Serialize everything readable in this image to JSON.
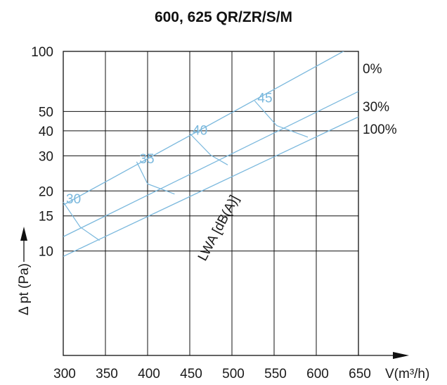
{
  "colors": {
    "grid": "#111111",
    "series": "#7ab8dd",
    "sound_label": "#7ab8dd",
    "text": "#1a1a1a"
  },
  "chart_data": {
    "type": "line",
    "title": "600, 625 QR/ZR/S/M",
    "xlabel": "V(m³/h)",
    "ylabel": "Δ pt (Pa)",
    "x_scale": "linear",
    "y_scale": "log",
    "xlim": [
      300,
      650
    ],
    "ylim": [
      3,
      100
    ],
    "x_ticks": [
      300,
      350,
      400,
      450,
      500,
      550,
      600,
      650
    ],
    "y_ticks": [
      10,
      15,
      20,
      30,
      40,
      50,
      100
    ],
    "grid": true,
    "series": [
      {
        "name": "0%",
        "x": [
          300,
          650
        ],
        "y": [
          17,
          110
        ]
      },
      {
        "name": "30%",
        "x": [
          300,
          650
        ],
        "y": [
          11.8,
          63
        ]
      },
      {
        "name": "100%",
        "x": [
          300,
          650
        ],
        "y": [
          9.4,
          47
        ]
      }
    ],
    "sound_label_title": "LWA [dB(A)]",
    "sound_levels": [
      {
        "label": "30",
        "points": [
          [
            300,
            17.6
          ],
          [
            320,
            13.2
          ],
          [
            343,
            11.3
          ]
        ]
      },
      {
        "label": "35",
        "points": [
          [
            387,
            28
          ],
          [
            400,
            21.7
          ],
          [
            432,
            19.3
          ]
        ]
      },
      {
        "label": "40",
        "points": [
          [
            450,
            38.8
          ],
          [
            475,
            30.2
          ],
          [
            495,
            27
          ]
        ]
      },
      {
        "label": "45",
        "points": [
          [
            527,
            56.5
          ],
          [
            553,
            42.5
          ],
          [
            590,
            37.2
          ]
        ]
      }
    ]
  }
}
